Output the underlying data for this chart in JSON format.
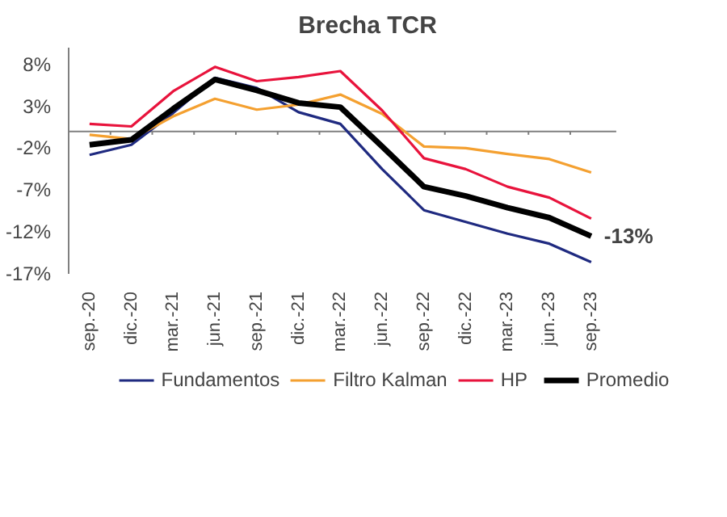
{
  "chart_data": {
    "type": "line",
    "title": "Brecha TCR",
    "categories": [
      "sep.-20",
      "dic.-20",
      "mar.-21",
      "jun.-21",
      "sep.-21",
      "dic.-21",
      "mar.-22",
      "jun.-22",
      "sep.-22",
      "dic.-22",
      "mar.-23",
      "jun.-23",
      "sep.-23"
    ],
    "series": [
      {
        "name": "Fundamentos",
        "color": "#1f2a80",
        "values": [
          -2.8,
          -1.6,
          2.2,
          6.4,
          5.2,
          2.3,
          0.9,
          -4.5,
          -9.4,
          -10.8,
          -12.2,
          -13.4,
          -15.6
        ]
      },
      {
        "name": "Filtro Kalman",
        "color": "#f4a030",
        "values": [
          -0.4,
          -0.9,
          1.8,
          3.9,
          2.6,
          3.2,
          4.4,
          2.1,
          -1.8,
          -2.0,
          -2.7,
          -3.3,
          -4.9
        ]
      },
      {
        "name": "HP",
        "color": "#e8133c",
        "values": [
          0.9,
          0.6,
          4.8,
          7.7,
          6.0,
          6.5,
          7.2,
          2.5,
          -3.2,
          -4.5,
          -6.6,
          -7.9,
          -10.4
        ]
      },
      {
        "name": "Promedio",
        "color": "#000000",
        "values": [
          -1.6,
          -1.0,
          2.7,
          6.2,
          4.9,
          3.4,
          2.9,
          -1.8,
          -6.6,
          -7.7,
          -9.1,
          -10.3,
          -12.5
        ]
      }
    ],
    "ylim": [
      -17,
      10
    ],
    "yticks": [
      {
        "value": -17,
        "label": "-17%"
      },
      {
        "value": -12,
        "label": "-12%"
      },
      {
        "value": -7,
        "label": "-7%"
      },
      {
        "value": -2,
        "label": "-2%"
      },
      {
        "value": 3,
        "label": "3%"
      },
      {
        "value": 8,
        "label": "8%"
      }
    ],
    "ref_lines": [
      {
        "axis": "y",
        "value": 0,
        "label": null,
        "color": "#808080"
      }
    ],
    "annotations": [
      {
        "text": "-13%",
        "x": "sep.-23",
        "y": -12.5
      }
    ],
    "grid": false,
    "legend": "bottom",
    "marker": "none",
    "line_style": "solid"
  }
}
